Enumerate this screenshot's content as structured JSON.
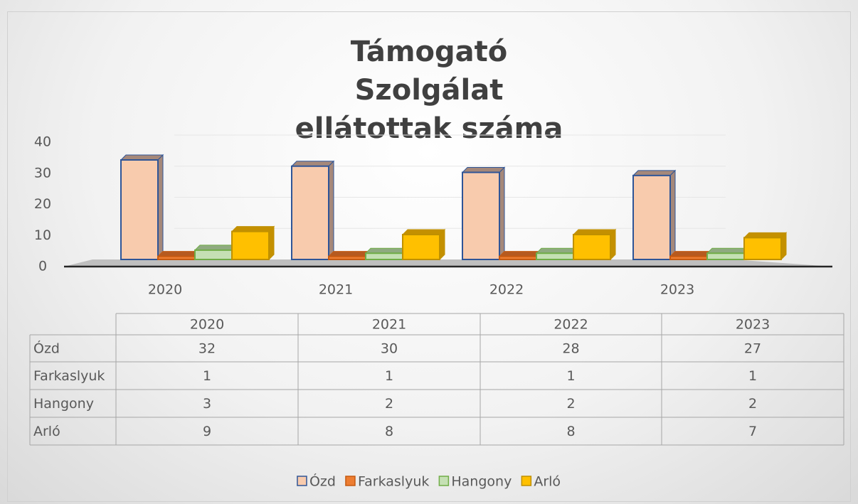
{
  "chart_data": {
    "type": "bar3d",
    "title": "Támogató Szolgálat ellátottak száma",
    "categories": [
      "2020",
      "2021",
      "2022",
      "2023"
    ],
    "series": [
      {
        "name": "Ózd",
        "color": "#f8cbad",
        "values": [
          32,
          30,
          28,
          27
        ]
      },
      {
        "name": "Farkaslyuk",
        "color": "#ed7d31",
        "values": [
          1,
          1,
          1,
          1
        ]
      },
      {
        "name": "Hangony",
        "color": "#c5e0b4",
        "values": [
          3,
          2,
          2,
          2
        ]
      },
      {
        "name": "Arló",
        "color": "#ffc000",
        "values": [
          9,
          8,
          8,
          7
        ]
      }
    ],
    "ylim": [
      0,
      40
    ],
    "yticks": [
      0,
      10,
      20,
      30,
      40
    ],
    "grid": true,
    "legend": "bottom"
  }
}
